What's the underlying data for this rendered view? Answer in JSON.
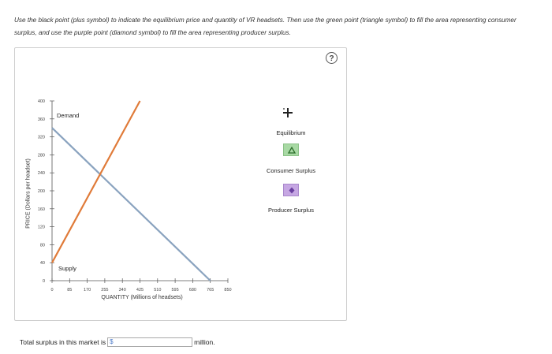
{
  "instructions": "Use the black point (plus symbol) to indicate the equilibrium price and quantity of VR headsets. Then use the green point (triangle symbol) to fill the area representing consumer surplus, and use the purple point (diamond symbol) to fill the area representing producer surplus.",
  "help_glyph": "?",
  "chart_data": {
    "type": "line",
    "xlabel": "QUANTITY (Millions of headsets)",
    "ylabel": "PRICE (Dollars per headset)",
    "x_ticks": [
      0,
      85,
      170,
      255,
      340,
      425,
      510,
      595,
      680,
      765,
      850
    ],
    "y_ticks": [
      0,
      40,
      80,
      120,
      160,
      200,
      240,
      280,
      320,
      360,
      400
    ],
    "xlim": [
      0,
      850
    ],
    "ylim": [
      0,
      400
    ],
    "series": [
      {
        "name": "Demand",
        "color": "#8aa3bf",
        "x": [
          0,
          765
        ],
        "y": [
          340,
          0
        ]
      },
      {
        "name": "Supply",
        "color": "#e07b39",
        "x": [
          0,
          425
        ],
        "y": [
          40,
          400
        ]
      }
    ]
  },
  "curve_labels": {
    "demand": "Demand",
    "supply": "Supply"
  },
  "legend": {
    "equilibrium": {
      "label": "Equilibrium",
      "icon": "plus-icon",
      "color": "#222222"
    },
    "consumer_surplus": {
      "label": "Consumer Surplus",
      "icon": "triangle-icon",
      "color": "#7fc97a"
    },
    "producer_surplus": {
      "label": "Producer Surplus",
      "icon": "diamond-icon",
      "color": "#9b72c9"
    }
  },
  "surplus": {
    "prefix": "Total surplus in this market is",
    "currency": "$",
    "value": "",
    "suffix": "million."
  }
}
